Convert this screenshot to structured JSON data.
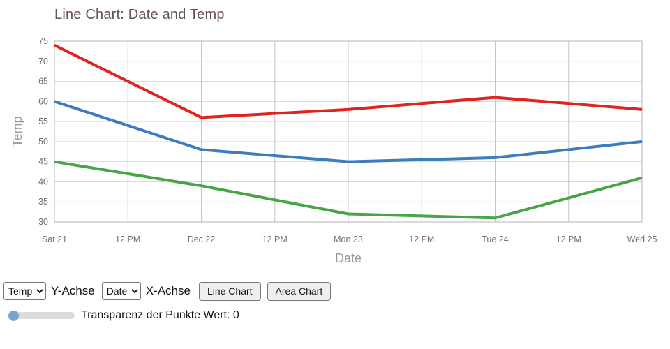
{
  "title": "Line Chart: Date and Temp",
  "chart_data": {
    "type": "line",
    "title": "Line Chart: Date and Temp",
    "xlabel": "Date",
    "ylabel": "Temp",
    "ylim": [
      30,
      75
    ],
    "ytick_labels": [
      "30",
      "35",
      "40",
      "45",
      "50",
      "55",
      "60",
      "65",
      "70",
      "75"
    ],
    "xtick_labels": [
      "Sat 21",
      "12 PM",
      "Dec 22",
      "12 PM",
      "Mon 23",
      "12 PM",
      "Tue 24",
      "12 PM",
      "Wed 25"
    ],
    "point_tick_indexes": [
      0,
      2,
      4,
      6,
      8
    ],
    "grid": true,
    "legend_position": "none",
    "series": [
      {
        "name": "red-line",
        "color": "#e0231e",
        "values": [
          74,
          56,
          58,
          61,
          58
        ]
      },
      {
        "name": "blue-line",
        "color": "#3d7dbf",
        "values": [
          60,
          48,
          45,
          46,
          50
        ]
      },
      {
        "name": "green-line",
        "color": "#46a546",
        "values": [
          45,
          39,
          32,
          31,
          41
        ]
      }
    ]
  },
  "controls": {
    "y_axis_select": {
      "value": "Temp",
      "label": "Y-Achse"
    },
    "x_axis_select": {
      "value": "Date",
      "label": "X-Achse"
    },
    "line_chart_button": "Line Chart",
    "area_chart_button": "Area Chart",
    "transparency_slider": {
      "label": "Transparenz der Punkte Wert:",
      "value": "0"
    }
  },
  "colors": {
    "title": "#64505f",
    "axis_label": "#979797",
    "tick_label": "#6e6e6e",
    "grid_horizontal": "#d9d9d9",
    "grid_vertical": "#c6c6c6",
    "plot_border": "#b4b4b4",
    "slider_thumb": "#77a5d2",
    "slider_track": "#dcdcdc"
  }
}
